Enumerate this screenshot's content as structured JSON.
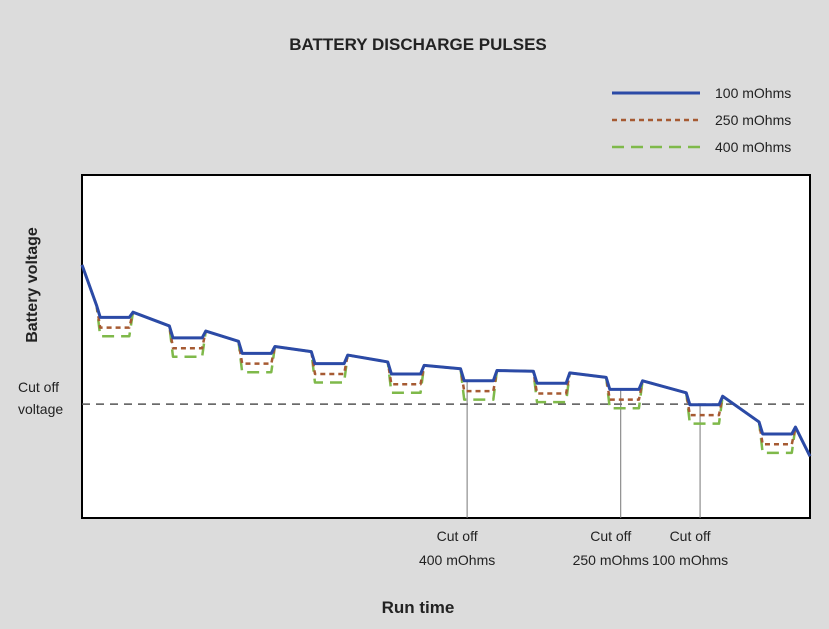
{
  "chart_data": {
    "type": "line",
    "title": "BATTERY DISCHARGE PULSES",
    "x_label": "Run time",
    "y_label": "Battery voltage",
    "xlim": [
      0,
      100
    ],
    "ylim": [
      0,
      100
    ],
    "legend": "top-right",
    "x": [
      0,
      2,
      2.5,
      6.5,
      7,
      12,
      12.5,
      16.5,
      17,
      21.5,
      22,
      26,
      26.5,
      31.5,
      32,
      36,
      36.5,
      42,
      42.5,
      46.5,
      47,
      52,
      52.5,
      56.5,
      57,
      62,
      62.5,
      66.5,
      67,
      72,
      72.5,
      76.5,
      77,
      83,
      83.5,
      87.5,
      88,
      93,
      93.5,
      97.5,
      98,
      100
    ],
    "series": [
      {
        "name": "100 mOhms",
        "color": "#2b4aa6",
        "style": "solid",
        "values": [
          73.8,
          62,
          58.5,
          58.5,
          60,
          56,
          52.5,
          52.5,
          54.5,
          51.5,
          48,
          48,
          50,
          48.5,
          45,
          45,
          47.5,
          45.5,
          42,
          42,
          44.5,
          43.5,
          40,
          40,
          43,
          42.8,
          39.3,
          39.3,
          42.3,
          41,
          37.5,
          37.5,
          40,
          36.5,
          33,
          33,
          35.5,
          28,
          24.5,
          24.5,
          26.5,
          18
        ]
      },
      {
        "name": "250 mOhms",
        "color": "#a65a32",
        "style": "dotted",
        "values": [
          73.8,
          62,
          55.5,
          55.5,
          60,
          56,
          49.5,
          49.5,
          54.5,
          51.5,
          45,
          45,
          50,
          48.5,
          42,
          42,
          47.5,
          45.5,
          39,
          39,
          44.5,
          43.5,
          37,
          37,
          43,
          42.8,
          36.3,
          36.3,
          42.3,
          41,
          34.5,
          34.5,
          40,
          36.5,
          30,
          30,
          35.5,
          28,
          21.5,
          21.5,
          26.5,
          18
        ]
      },
      {
        "name": "400 mOhms",
        "color": "#7fb94a",
        "style": "dashed",
        "values": [
          73.8,
          62,
          53,
          53,
          60,
          56,
          47,
          47,
          54.5,
          51.5,
          42.5,
          42.5,
          50,
          48.5,
          39.5,
          39.5,
          47.5,
          45.5,
          36.5,
          36.5,
          44.5,
          43.5,
          34.5,
          34.5,
          43,
          42.8,
          33.8,
          33.8,
          42.3,
          41,
          32,
          32,
          40,
          36.5,
          27.5,
          27.5,
          35.5,
          28,
          19,
          19,
          26.5,
          18
        ]
      }
    ],
    "cutoff_voltage": {
      "value": 33.2,
      "label": [
        "Cut off",
        "voltage"
      ]
    },
    "cutoffs": [
      {
        "x": 52.9,
        "label": [
          "Cut off",
          "400 mOhms"
        ]
      },
      {
        "x": 74.0,
        "label": [
          "Cut off",
          "250 mOhms"
        ]
      },
      {
        "x": 84.9,
        "label": [
          "Cut off",
          "100 mOhms"
        ]
      }
    ]
  }
}
